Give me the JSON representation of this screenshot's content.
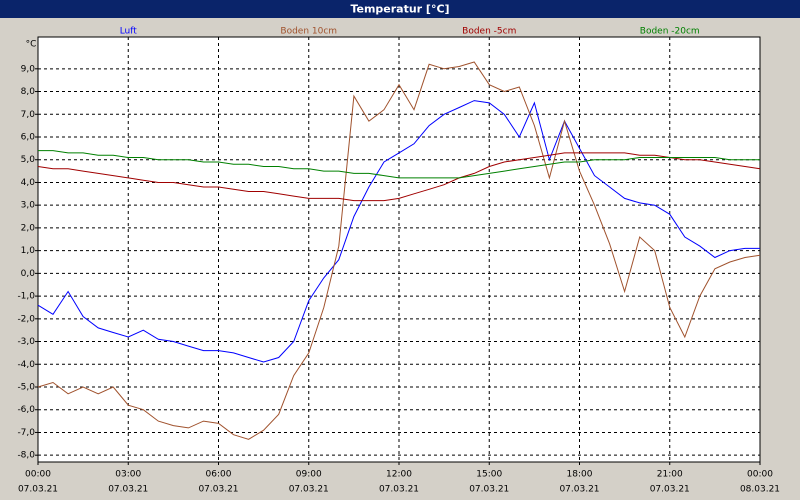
{
  "chart_data": {
    "type": "line",
    "title": "Temperatur [°C]",
    "y_unit": "°C",
    "x": [
      "2021-03-07T00:00",
      "2021-03-07T00:30",
      "2021-03-07T01:00",
      "2021-03-07T01:30",
      "2021-03-07T02:00",
      "2021-03-07T02:30",
      "2021-03-07T03:00",
      "2021-03-07T03:30",
      "2021-03-07T04:00",
      "2021-03-07T04:30",
      "2021-03-07T05:00",
      "2021-03-07T05:30",
      "2021-03-07T06:00",
      "2021-03-07T06:30",
      "2021-03-07T07:00",
      "2021-03-07T07:30",
      "2021-03-07T08:00",
      "2021-03-07T08:30",
      "2021-03-07T09:00",
      "2021-03-07T09:30",
      "2021-03-07T10:00",
      "2021-03-07T10:30",
      "2021-03-07T11:00",
      "2021-03-07T11:30",
      "2021-03-07T12:00",
      "2021-03-07T12:30",
      "2021-03-07T13:00",
      "2021-03-07T13:30",
      "2021-03-07T14:00",
      "2021-03-07T14:30",
      "2021-03-07T15:00",
      "2021-03-07T15:30",
      "2021-03-07T16:00",
      "2021-03-07T16:30",
      "2021-03-07T17:00",
      "2021-03-07T17:30",
      "2021-03-07T18:00",
      "2021-03-07T18:30",
      "2021-03-07T19:00",
      "2021-03-07T19:30",
      "2021-03-07T20:00",
      "2021-03-07T20:30",
      "2021-03-07T21:00",
      "2021-03-07T21:30",
      "2021-03-07T22:00",
      "2021-03-07T22:30",
      "2021-03-07T23:00",
      "2021-03-07T23:30",
      "2021-03-08T00:00"
    ],
    "series": [
      {
        "name": "Luft",
        "color": "#0000ff",
        "values": [
          -1.4,
          -1.8,
          -0.8,
          -1.9,
          -2.4,
          -2.6,
          -2.8,
          -2.5,
          -2.9,
          -3.0,
          -3.2,
          -3.4,
          -3.4,
          -3.5,
          -3.7,
          -3.9,
          -3.7,
          -3.0,
          -1.2,
          -0.2,
          0.6,
          2.5,
          3.8,
          4.9,
          5.3,
          5.7,
          6.5,
          7.0,
          7.3,
          7.6,
          7.5,
          7.0,
          6.0,
          7.5,
          5.0,
          6.7,
          5.5,
          4.3,
          3.8,
          3.3,
          3.1,
          3.0,
          2.6,
          1.6,
          1.2,
          0.7,
          1.0,
          1.1,
          1.1
        ]
      },
      {
        "name": "Boden 10cm",
        "color": "#a0522d",
        "values": [
          -5.0,
          -4.8,
          -5.3,
          -5.0,
          -5.3,
          -5.0,
          -5.8,
          -6.0,
          -6.5,
          -6.7,
          -6.8,
          -6.5,
          -6.6,
          -7.1,
          -7.3,
          -6.9,
          -6.2,
          -4.5,
          -3.5,
          -1.5,
          1.2,
          7.8,
          6.7,
          7.2,
          8.3,
          7.2,
          9.2,
          9.0,
          9.1,
          9.3,
          8.3,
          8.0,
          8.2,
          6.5,
          4.2,
          6.7,
          4.5,
          3.0,
          1.3,
          -0.8,
          1.6,
          1.0,
          -1.5,
          -2.8,
          -1.0,
          0.2,
          0.5,
          0.7,
          0.8
        ]
      },
      {
        "name": "Boden -5cm",
        "color": "#a00000",
        "values": [
          4.7,
          4.6,
          4.6,
          4.5,
          4.4,
          4.3,
          4.2,
          4.1,
          4.0,
          4.0,
          3.9,
          3.8,
          3.8,
          3.7,
          3.6,
          3.6,
          3.5,
          3.4,
          3.3,
          3.3,
          3.3,
          3.2,
          3.2,
          3.2,
          3.3,
          3.5,
          3.7,
          3.9,
          4.2,
          4.4,
          4.7,
          4.9,
          5.0,
          5.1,
          5.2,
          5.3,
          5.3,
          5.3,
          5.3,
          5.3,
          5.2,
          5.2,
          5.1,
          5.0,
          5.0,
          4.9,
          4.8,
          4.7,
          4.6
        ]
      },
      {
        "name": "Boden -20cm",
        "color": "#008000",
        "values": [
          5.4,
          5.4,
          5.3,
          5.3,
          5.2,
          5.2,
          5.1,
          5.1,
          5.0,
          5.0,
          5.0,
          4.9,
          4.9,
          4.8,
          4.8,
          4.7,
          4.7,
          4.6,
          4.6,
          4.5,
          4.5,
          4.4,
          4.4,
          4.3,
          4.2,
          4.2,
          4.2,
          4.2,
          4.2,
          4.3,
          4.4,
          4.5,
          4.6,
          4.7,
          4.8,
          4.9,
          4.9,
          5.0,
          5.0,
          5.0,
          5.1,
          5.1,
          5.1,
          5.1,
          5.1,
          5.1,
          5.0,
          5.0,
          5.0
        ]
      }
    ],
    "xlim": [
      "2021-03-07T00:00",
      "2021-03-08T00:00"
    ],
    "xticks": [
      {
        "value": "2021-03-07T00:00",
        "label": "00:00",
        "sublabel": "07.03.21"
      },
      {
        "value": "2021-03-07T03:00",
        "label": "03:00",
        "sublabel": "07.03.21"
      },
      {
        "value": "2021-03-07T06:00",
        "label": "06:00",
        "sublabel": "07.03.21"
      },
      {
        "value": "2021-03-07T09:00",
        "label": "09:00",
        "sublabel": "07.03.21"
      },
      {
        "value": "2021-03-07T12:00",
        "label": "12:00",
        "sublabel": "07.03.21"
      },
      {
        "value": "2021-03-07T15:00",
        "label": "15:00",
        "sublabel": "07.03.21"
      },
      {
        "value": "2021-03-07T18:00",
        "label": "18:00",
        "sublabel": "07.03.21"
      },
      {
        "value": "2021-03-07T21:00",
        "label": "21:00",
        "sublabel": "07.03.21"
      },
      {
        "value": "2021-03-08T00:00",
        "label": "00:00",
        "sublabel": "08.03.21"
      }
    ],
    "ylim": [
      -8.3,
      10.4
    ],
    "yticks": [
      {
        "value": -8,
        "label": "-8,0"
      },
      {
        "value": -7,
        "label": "-7,0"
      },
      {
        "value": -6,
        "label": "-6,0"
      },
      {
        "value": -5,
        "label": "-5,0"
      },
      {
        "value": -4,
        "label": "-4,0"
      },
      {
        "value": -3,
        "label": "-3,0"
      },
      {
        "value": -2,
        "label": "-2,0"
      },
      {
        "value": -1,
        "label": "-1,0"
      },
      {
        "value": 0,
        "label": "0,0"
      },
      {
        "value": 1,
        "label": "1,0"
      },
      {
        "value": 2,
        "label": "2,0"
      },
      {
        "value": 3,
        "label": "3,0"
      },
      {
        "value": 4,
        "label": "4,0"
      },
      {
        "value": 5,
        "label": "5,0"
      },
      {
        "value": 6,
        "label": "6,0"
      },
      {
        "value": 7,
        "label": "7,0"
      },
      {
        "value": 8,
        "label": "8,0"
      },
      {
        "value": 9,
        "label": "9,0"
      }
    ],
    "grid": true,
    "legend_position": "top"
  }
}
